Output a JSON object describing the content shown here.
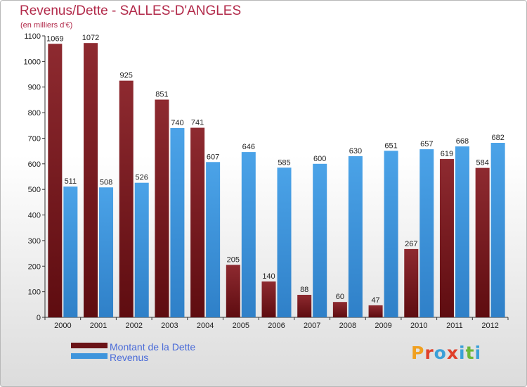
{
  "title": "Revenus/Dette - SALLES-D'ANGLES",
  "subtitle": "(en milliers d'€)",
  "logo": {
    "text": "Proxiti",
    "colors": [
      "#f0a020",
      "#3aa0d8",
      "#e0402a",
      "#6cb83a"
    ]
  },
  "colors": {
    "dette": "#7a1e22",
    "revenus": "#3f95dc",
    "title": "#b22a4a",
    "legend_text": "#4a6bd8"
  },
  "legend": [
    {
      "label": "Montant de la Dette",
      "color": "#7a1e22"
    },
    {
      "label": "Revenus",
      "color": "#3f95dc"
    }
  ],
  "chart_data": {
    "type": "bar",
    "categories": [
      "2000",
      "2001",
      "2002",
      "2003",
      "2004",
      "2005",
      "2006",
      "2007",
      "2008",
      "2009",
      "2010",
      "2011",
      "2012"
    ],
    "series": [
      {
        "name": "Montant de la Dette",
        "values": [
          1069,
          1072,
          925,
          851,
          741,
          205,
          140,
          88,
          60,
          47,
          267,
          619,
          584
        ]
      },
      {
        "name": "Revenus",
        "values": [
          511,
          508,
          526,
          740,
          607,
          646,
          585,
          600,
          630,
          651,
          657,
          668,
          682
        ]
      }
    ],
    "title": "Revenus/Dette - SALLES-D'ANGLES",
    "ylabel": "(en milliers d'€)",
    "xlabel": "",
    "ylim": [
      0,
      1100
    ],
    "yticks": [
      0,
      100,
      200,
      300,
      400,
      500,
      600,
      700,
      800,
      900,
      1000,
      1100
    ],
    "grid": false,
    "legend_position": "bottom-left"
  }
}
